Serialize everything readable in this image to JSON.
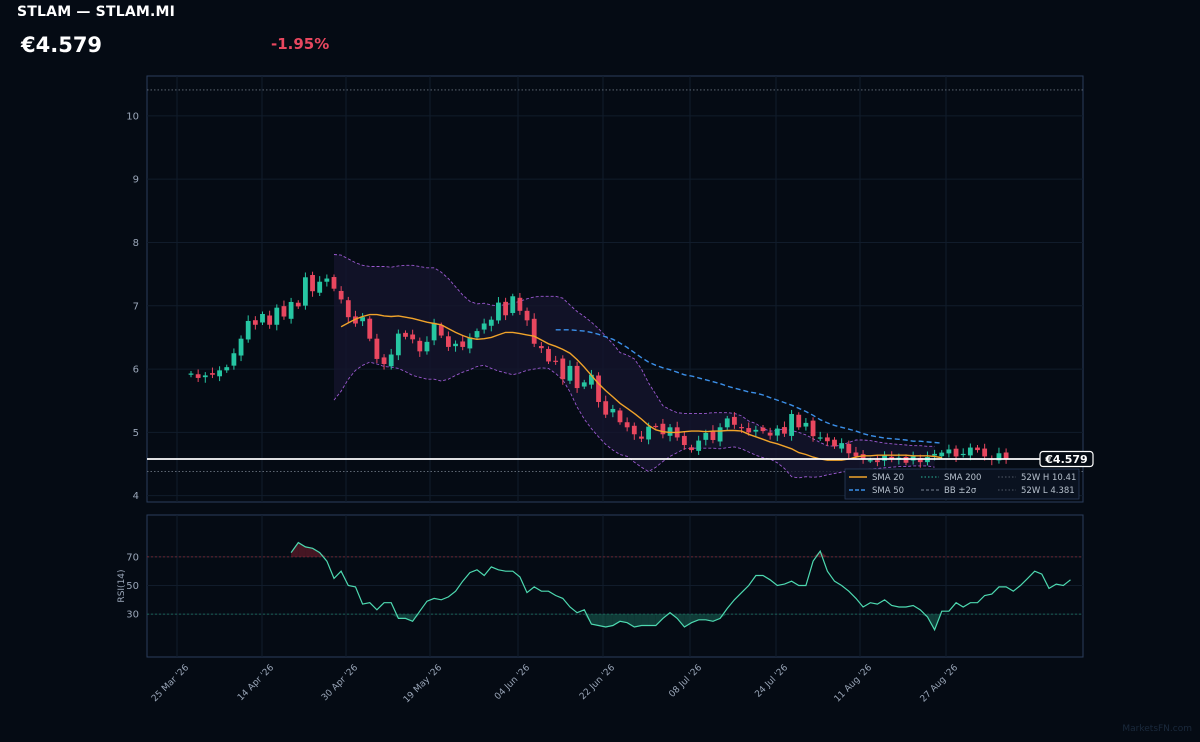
{
  "header": {
    "ticker": "STLAM — STLAM.MI",
    "price": "€4.579",
    "change": "-1.95%"
  },
  "watermark": "MarketsFN.com",
  "colors": {
    "background": "#050b14",
    "up": "#26c6a2",
    "down": "#e8475f",
    "sma20": "#f0a32a",
    "sma50": "#3b8fe8",
    "sma200": "#9aa0a6",
    "bb": "#9b59d0",
    "price_line": "#ffffff",
    "rsi": "#4dd9b0"
  },
  "chart_data": [
    {
      "type": "candlestick",
      "x_type": "date",
      "x_ticks": [
        "25 Mar '26",
        "14 Apr '26",
        "30 Apr '26",
        "19 May '26",
        "04 Jun '26",
        "22 Jun '26",
        "08 Jul '26",
        "24 Jul '26",
        "11 Aug '26",
        "27 Aug '26"
      ],
      "y_ticks": [
        4,
        5,
        6,
        7,
        8,
        9,
        10
      ],
      "ylim": [
        3.9,
        10.7
      ],
      "grid": true,
      "last_price": 4.579,
      "last_price_label": "€4.579",
      "week52_high": 10.41,
      "week52_low": 4.381,
      "legend": {
        "position": "bottom-right",
        "entries": [
          "SMA 20",
          "SMA 200",
          "52W H 10.41",
          "SMA 50",
          "BB ±2σ",
          "52W L 4.381"
        ]
      },
      "closes": [
        5.93,
        5.86,
        5.9,
        5.91,
        5.98,
        6.03,
        6.25,
        6.48,
        6.76,
        6.7,
        6.87,
        6.7,
        6.97,
        6.83,
        7.06,
        6.99,
        7.45,
        7.23,
        7.38,
        7.43,
        7.27,
        7.1,
        6.82,
        6.72,
        6.82,
        6.48,
        6.16,
        6.08,
        6.23,
        6.56,
        6.51,
        6.47,
        6.28,
        6.43,
        6.73,
        6.53,
        6.35,
        6.4,
        6.35,
        6.5,
        6.6,
        6.72,
        6.78,
        7.05,
        6.85,
        7.15,
        6.92,
        6.77,
        6.4,
        6.33,
        6.12,
        6.13,
        5.84,
        6.05,
        5.7,
        5.79,
        5.91,
        5.48,
        5.28,
        5.37,
        5.16,
        5.08,
        4.97,
        4.9,
        5.09,
        5.1,
        4.97,
        5.08,
        4.92,
        4.8,
        4.72,
        4.87,
        4.99,
        4.88,
        5.08,
        5.22,
        5.12,
        5.08,
        5.0,
        5.04,
        5.02,
        4.95,
        5.06,
        4.98,
        5.29,
        5.08,
        5.15,
        4.94,
        4.92,
        4.86,
        4.78,
        4.83,
        4.67,
        4.62,
        4.58,
        4.56,
        4.53,
        4.65,
        4.58,
        4.6,
        4.52,
        4.62,
        4.53,
        4.61,
        4.66,
        4.68,
        4.73,
        4.62,
        4.66,
        4.76,
        4.72,
        4.62,
        4.57,
        4.67,
        4.579
      ],
      "sma20_start": 21,
      "sma20": [
        6.67,
        6.73,
        6.79,
        6.83,
        6.86,
        6.86,
        6.84,
        6.83,
        6.84,
        6.82,
        6.8,
        6.77,
        6.74,
        6.72,
        6.7,
        6.64,
        6.58,
        6.53,
        6.49,
        6.47,
        6.48,
        6.5,
        6.54,
        6.58,
        6.58,
        6.56,
        6.54,
        6.52,
        6.46,
        6.4,
        6.36,
        6.31,
        6.25,
        6.15,
        6.03,
        5.9,
        5.77,
        5.66,
        5.56,
        5.46,
        5.38,
        5.3,
        5.21,
        5.11,
        5.04,
        5.01,
        5.0,
        5.0,
        5.01,
        5.02,
        5.02,
        5.01,
        5.02,
        5.02,
        5.03,
        5.03,
        5.02,
        4.97,
        4.93,
        4.89,
        4.85,
        4.82,
        4.78,
        4.74,
        4.68,
        4.65,
        4.61,
        4.58,
        4.56,
        4.56,
        4.56,
        4.58,
        4.61,
        4.63,
        4.63,
        4.64,
        4.64,
        4.64,
        4.64,
        4.64,
        4.63,
        4.63,
        4.63,
        4.62,
        4.6
      ],
      "sma50_start": 51,
      "sma50": [
        6.62,
        6.62,
        6.62,
        6.61,
        6.6,
        6.58,
        6.55,
        6.51,
        6.47,
        6.41,
        6.34,
        6.26,
        6.18,
        6.11,
        6.06,
        6.02,
        5.99,
        5.95,
        5.91,
        5.89,
        5.86,
        5.83,
        5.8,
        5.77,
        5.73,
        5.7,
        5.67,
        5.64,
        5.62,
        5.59,
        5.55,
        5.51,
        5.47,
        5.43,
        5.38,
        5.33,
        5.27,
        5.2,
        5.15,
        5.11,
        5.08,
        5.05,
        5.02,
        4.98,
        4.95,
        4.93,
        4.91,
        4.9,
        4.89,
        4.88,
        4.86,
        4.86,
        4.85,
        4.84,
        4.83
      ],
      "bb_upper": [
        7.81,
        7.8,
        7.74,
        7.68,
        7.64,
        7.62,
        7.62,
        7.62,
        7.61,
        7.63,
        7.64,
        7.64,
        7.62,
        7.6,
        7.6,
        7.53,
        7.43,
        7.3,
        7.17,
        7.07,
        7.03,
        7.04,
        7.01,
        7.0,
        7.02,
        7.04,
        7.07,
        7.11,
        7.14,
        7.15,
        7.15,
        7.15,
        7.12,
        7.01,
        6.91,
        6.83,
        6.74,
        6.64,
        6.52,
        6.4,
        6.26,
        6.22,
        6.16,
        6.0,
        5.78,
        5.6,
        5.42,
        5.36,
        5.31,
        5.3,
        5.3,
        5.3,
        5.3,
        5.31,
        5.31,
        5.31,
        5.3,
        5.26,
        5.18,
        5.14,
        5.06,
        5.02,
        5.03,
        5.06,
        5.03,
        5.0,
        4.96,
        4.9,
        4.84,
        4.79,
        4.78,
        4.8,
        4.84,
        4.88,
        4.88,
        4.87,
        4.85,
        4.83,
        4.82,
        4.81,
        4.8,
        4.79,
        4.79,
        4.78,
        4.78
      ],
      "bb_lower": [
        5.51,
        5.65,
        5.84,
        5.98,
        6.06,
        6.11,
        6.08,
        6.04,
        6.03,
        6.01,
        5.96,
        5.9,
        5.87,
        5.84,
        5.84,
        5.81,
        5.84,
        5.9,
        5.95,
        5.99,
        6.04,
        6.06,
        6.01,
        5.97,
        5.94,
        5.91,
        5.94,
        5.98,
        6.0,
        6.02,
        6.01,
        5.93,
        5.83,
        5.64,
        5.4,
        5.21,
        5.06,
        4.93,
        4.81,
        4.72,
        4.65,
        4.62,
        4.53,
        4.45,
        4.38,
        4.45,
        4.54,
        4.62,
        4.68,
        4.74,
        4.75,
        4.75,
        4.75,
        4.75,
        4.74,
        4.76,
        4.77,
        4.74,
        4.69,
        4.64,
        4.6,
        4.58,
        4.52,
        4.43,
        4.3,
        4.28,
        4.3,
        4.29,
        4.3,
        4.33,
        4.35,
        4.37,
        4.39,
        4.41,
        4.41,
        4.42,
        4.43,
        4.44,
        4.45,
        4.46,
        4.46,
        4.47,
        4.47,
        4.47,
        4.45
      ]
    },
    {
      "type": "line",
      "name": "RSI(14)",
      "ylabel": "RSI(14)",
      "y_ticks": [
        30,
        50,
        70
      ],
      "ylim": [
        0,
        100
      ],
      "overbought": 70,
      "oversold": 30,
      "x_ticks": [
        "25 Mar '26",
        "14 Apr '26",
        "30 Apr '26",
        "19 May '26",
        "04 Jun '26",
        "22 Jun '26",
        "08 Jul '26",
        "24 Jul '26",
        "11 Aug '26",
        "27 Aug '26"
      ],
      "start_index": 14,
      "values": [
        73,
        80,
        77,
        76,
        73,
        67,
        55,
        60,
        50,
        49,
        37,
        38,
        33,
        38,
        38,
        27,
        27,
        25,
        32,
        39,
        41,
        40,
        42,
        46,
        53,
        59,
        61,
        57,
        63,
        61,
        60,
        60,
        56,
        45,
        49,
        46,
        46,
        43,
        41,
        35,
        31,
        33,
        23,
        22,
        21,
        22,
        25,
        24,
        21,
        22,
        22,
        22,
        27,
        31,
        27,
        21,
        24,
        26,
        26,
        25,
        27,
        34,
        40,
        45,
        50,
        57,
        57,
        54,
        50,
        51,
        53,
        50,
        50,
        67,
        74,
        60,
        53,
        50,
        46,
        41,
        35,
        38,
        37,
        40,
        36,
        35,
        35,
        36,
        33,
        28,
        19,
        32,
        32,
        38,
        35,
        38,
        38,
        43,
        44,
        49,
        49,
        46,
        50,
        55,
        60,
        58,
        48,
        51,
        50,
        54
      ]
    }
  ]
}
